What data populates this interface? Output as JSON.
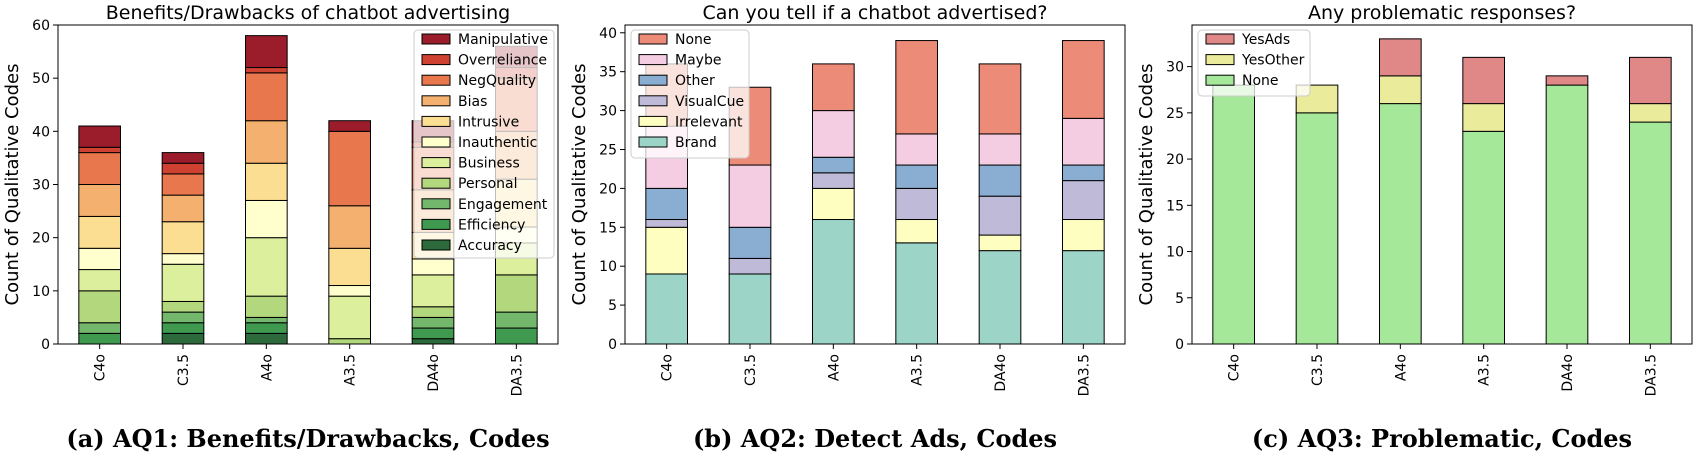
{
  "chart_data": [
    {
      "type": "bar",
      "stacked": true,
      "title": "Benefits/Drawbacks of chatbot advertising",
      "ylabel": "Count of Qualitative Codes",
      "xlabel": "",
      "ylim": [
        0,
        60
      ],
      "yticks": [
        0,
        10,
        20,
        30,
        40,
        50,
        60
      ],
      "categories": [
        "C4o",
        "C3.5",
        "A4o",
        "A3.5",
        "DA4o",
        "DA3.5"
      ],
      "legend_position": "top-right",
      "grid": false,
      "caption": "(a) AQ1: Benefits/Drawbacks, Codes",
      "series": [
        {
          "name": "Accuracy",
          "color": "#2d6a3b",
          "values": [
            0,
            2,
            2,
            0,
            1,
            0
          ]
        },
        {
          "name": "Efficiency",
          "color": "#3f9a50",
          "values": [
            2,
            2,
            2,
            0,
            2,
            3
          ]
        },
        {
          "name": "Engagement",
          "color": "#73b76c",
          "values": [
            2,
            2,
            1,
            0,
            2,
            3
          ]
        },
        {
          "name": "Personal",
          "color": "#b2d77c",
          "values": [
            6,
            2,
            4,
            1,
            2,
            7
          ]
        },
        {
          "name": "Business",
          "color": "#dcef9d",
          "values": [
            4,
            7,
            11,
            8,
            6,
            6
          ]
        },
        {
          "name": "Inauthentic",
          "color": "#ffffcd",
          "values": [
            4,
            2,
            7,
            2,
            3,
            3
          ]
        },
        {
          "name": "Intrusive",
          "color": "#fbde92",
          "values": [
            6,
            6,
            7,
            7,
            5,
            9
          ]
        },
        {
          "name": "Bias",
          "color": "#f4b06e",
          "values": [
            6,
            5,
            8,
            8,
            8,
            9
          ]
        },
        {
          "name": "NegQuality",
          "color": "#e8774d",
          "values": [
            6,
            4,
            9,
            14,
            8,
            10
          ]
        },
        {
          "name": "Overreliance",
          "color": "#cf4130",
          "values": [
            1,
            2,
            1,
            0,
            1,
            2
          ]
        },
        {
          "name": "Manipulative",
          "color": "#9b1d2b",
          "values": [
            4,
            2,
            6,
            2,
            4,
            4
          ]
        }
      ]
    },
    {
      "type": "bar",
      "stacked": true,
      "title": "Can you tell if a chatbot advertised?",
      "ylabel": "Count of Qualitative Codes",
      "xlabel": "",
      "ylim": [
        0,
        41
      ],
      "yticks": [
        0,
        5,
        10,
        15,
        20,
        25,
        30,
        35,
        40
      ],
      "categories": [
        "C4o",
        "C3.5",
        "A4o",
        "A3.5",
        "DA4o",
        "DA3.5"
      ],
      "legend_position": "top-left",
      "grid": false,
      "caption": "(b) AQ2: Detect Ads, Codes",
      "series": [
        {
          "name": "Brand",
          "color": "#9cd4c8",
          "values": [
            9,
            9,
            16,
            13,
            12,
            12
          ]
        },
        {
          "name": "Irrelevant",
          "color": "#fefec0",
          "values": [
            6,
            0,
            4,
            3,
            2,
            4
          ]
        },
        {
          "name": "VisualCue",
          "color": "#c0bad9",
          "values": [
            1,
            2,
            2,
            4,
            5,
            5
          ]
        },
        {
          "name": "Other",
          "color": "#8aaed1",
          "values": [
            4,
            4,
            2,
            3,
            4,
            2
          ]
        },
        {
          "name": "Maybe",
          "color": "#f5cde3",
          "values": [
            8,
            8,
            6,
            4,
            4,
            6
          ]
        },
        {
          "name": "None",
          "color": "#ec8b78",
          "values": [
            8,
            10,
            6,
            12,
            9,
            10
          ]
        }
      ]
    },
    {
      "type": "bar",
      "stacked": true,
      "title": "Any problematic responses?",
      "ylabel": "Count of Qualitative Codes",
      "xlabel": "",
      "ylim": [
        0,
        34.5
      ],
      "yticks": [
        0,
        5,
        10,
        15,
        20,
        25,
        30
      ],
      "categories": [
        "C4o",
        "C3.5",
        "A4o",
        "A3.5",
        "DA4o",
        "DA3.5"
      ],
      "legend_position": "top-left",
      "grid": false,
      "caption": "(c) AQ3: Problematic, Codes",
      "series": [
        {
          "name": "None",
          "color": "#a5e89a",
          "values": [
            28,
            25,
            26,
            23,
            28,
            24
          ]
        },
        {
          "name": "YesOther",
          "color": "#ebeb9c",
          "values": [
            0,
            3,
            3,
            3,
            0,
            2
          ]
        },
        {
          "name": "YesAds",
          "color": "#e08787",
          "values": [
            0,
            0,
            4,
            5,
            1,
            5
          ]
        }
      ]
    }
  ]
}
